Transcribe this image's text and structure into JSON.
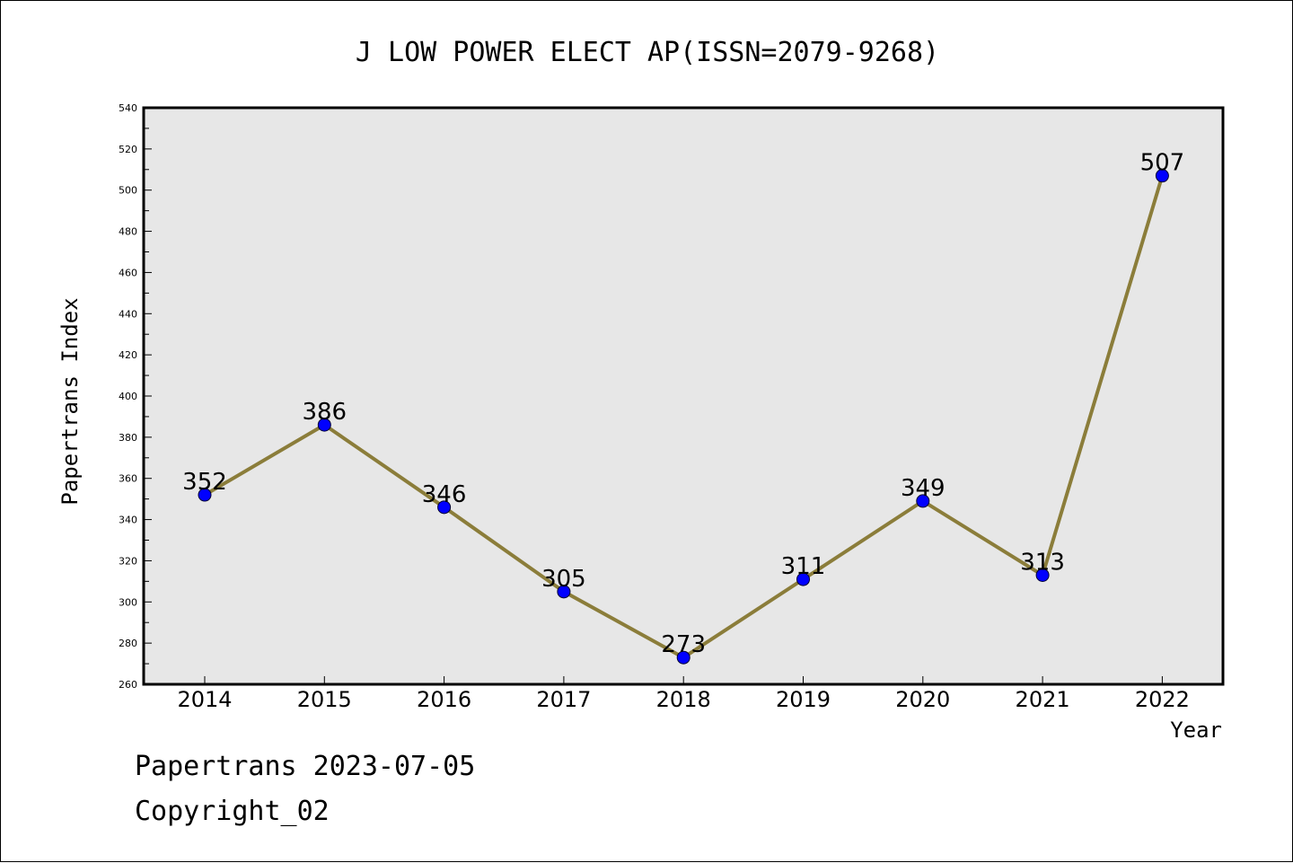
{
  "chart_data": {
    "type": "line",
    "title": "J LOW POWER ELECT AP(ISSN=2079-9268)",
    "xlabel": "Year",
    "ylabel": "Papertrans Index",
    "categories": [
      "2014",
      "2015",
      "2016",
      "2017",
      "2018",
      "2019",
      "2020",
      "2021",
      "2022"
    ],
    "series": [
      {
        "values": [
          352,
          386,
          346,
          305,
          273,
          311,
          349,
          313,
          507
        ]
      }
    ],
    "ylim": [
      260,
      540
    ],
    "yticks": [
      260,
      280,
      300,
      320,
      340,
      360,
      380,
      400,
      420,
      440,
      460,
      480,
      500,
      520,
      540
    ],
    "grid": false,
    "data_labels": true,
    "colors": {
      "line": "#8b7d3a",
      "marker": "#0000ff",
      "plot_background": "#e7e7e7",
      "axes": "#000000"
    }
  },
  "footer": {
    "line1": "Papertrans 2023-07-05",
    "line2": "Copyright_02"
  }
}
